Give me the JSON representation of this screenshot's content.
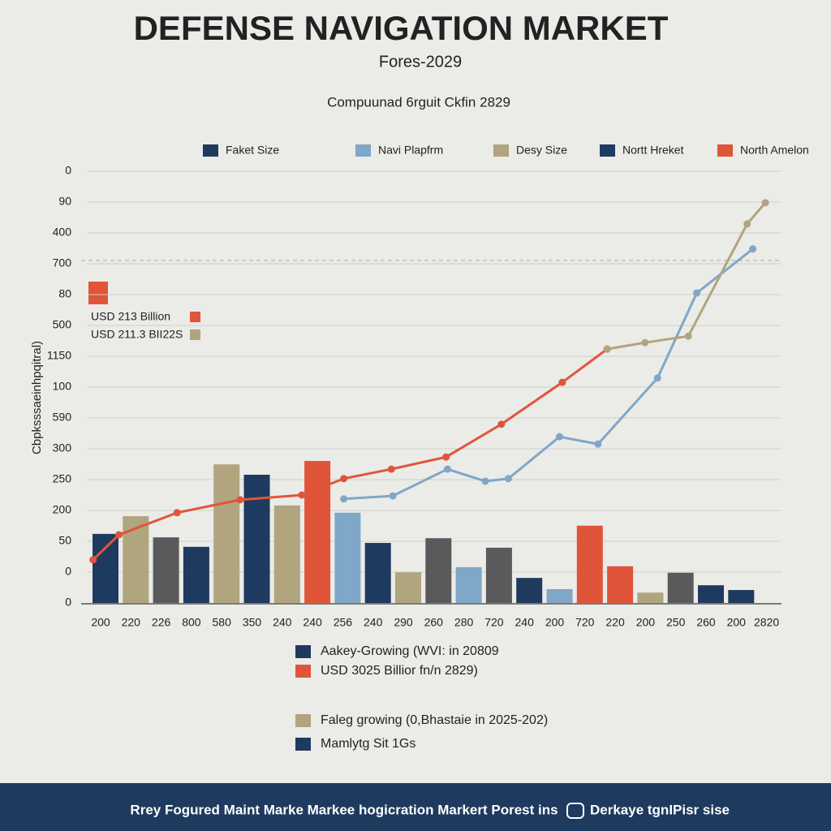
{
  "chart_data": {
    "type": "bar",
    "title": "DEFENSE NAVIGATION MARKET",
    "subtitle": "Fores-2029",
    "caption": "Compuunad 6rguit Ckfin 2829",
    "y_axis_title": "Cbpksssaeinhpqitral)",
    "y_axis_labels": [
      "0",
      "90",
      "400",
      "700",
      "80",
      "500",
      "1150",
      "100",
      "590",
      "300",
      "250",
      "200",
      "50",
      "0",
      "0"
    ],
    "legend": [
      {
        "name": "Faket Size",
        "color": "#1f3a5f"
      },
      {
        "name": "Navi Plapfrm",
        "color": "#7fa7c7"
      },
      {
        "name": "Desy Size",
        "color": "#b0a57e"
      },
      {
        "name": "Nortt Hreket",
        "color": "#1f3a5f"
      },
      {
        "name": "North Amelon",
        "color": "#e0553a"
      }
    ],
    "annotations": [
      {
        "text": "USD 213 Billion",
        "color": "#e0553a"
      },
      {
        "text": "USD 211.3 BII22S",
        "color": "#b0a57e"
      }
    ],
    "categories": [
      "200",
      "220",
      "226",
      "800",
      "580",
      "350",
      "240",
      "240",
      "256",
      "240",
      "290",
      "260",
      "280",
      "720",
      "240",
      "200",
      "720",
      "220",
      "200",
      "250",
      "260",
      "200",
      "2820"
    ],
    "values": [
      16,
      20.1,
      15.2,
      13,
      32.1,
      29.7,
      22.6,
      32.9,
      20.9,
      13.9,
      7.1,
      15,
      8.3,
      12.8,
      5.8,
      3.2,
      17.9,
      8.5,
      2.4,
      7,
      4.1,
      3,
      null
    ],
    "bar_colors": [
      "#1f3a5f",
      "#b0a57e",
      "#5a5a5c",
      "#1f3a5f",
      "#b0a57e",
      "#1f3a5f",
      "#b0a57e",
      "#e0553a",
      "#7fa7c7",
      "#1f3a5f",
      "#b0a57e",
      "#5a5a5c",
      "#7fa7c7",
      "#5a5a5c",
      "#1f3a5f",
      "#7fa7c7",
      "#e0553a",
      "#e0553a",
      "#b0a57e",
      "#5a5a5c",
      "#1f3a5f",
      "#1f3a5f",
      "#1f3a5f"
    ],
    "ylim": [
      0,
      100
    ],
    "xlim": [
      0,
      100
    ],
    "grid": true,
    "lines": [
      {
        "color": "#e0553a",
        "x": [
          1.7,
          5.4,
          13.7,
          22.7,
          31.5,
          37.5,
          44.3,
          52.1,
          60,
          68.7,
          75.1
        ],
        "values": [
          10,
          15.8,
          20.9,
          23.9,
          25,
          28.8,
          31,
          33.8,
          41.4,
          51.1,
          58.8
        ]
      },
      {
        "color": "#7fa7c7",
        "x": [
          37.5,
          44.5,
          52.3,
          57.7,
          61,
          68.3,
          73.8,
          82.3,
          87.9,
          95.9
        ],
        "values": [
          24.1,
          24.8,
          31,
          28.2,
          28.8,
          38.5,
          36.8,
          52.1,
          71.8,
          82
        ]
      },
      {
        "color": "#b0a57e",
        "x": [
          75.1,
          80.5,
          86.7,
          95.1,
          97.7
        ],
        "values": [
          58.8,
          60.3,
          61.8,
          87.8,
          92.7
        ]
      }
    ],
    "bottom_legend": [
      {
        "name": "Aakey-Growing (WVI: in 20809",
        "color": "#1f3a5f"
      },
      {
        "name": "USD 3025 Billior fn/n 2829)",
        "color": "#e0553a"
      },
      {
        "name": "Faleg growing (0,Bhastaie in 2025-202)",
        "color": "#b0a57e"
      },
      {
        "name": "Mamlytg Sit 1Gs",
        "color": "#1f3a5f"
      }
    ],
    "footer": {
      "left": "Rrey Fogured Maint Marke Markee hogicration Markert Porest ins",
      "right": "Derkaye tgnIPisr sise"
    }
  }
}
